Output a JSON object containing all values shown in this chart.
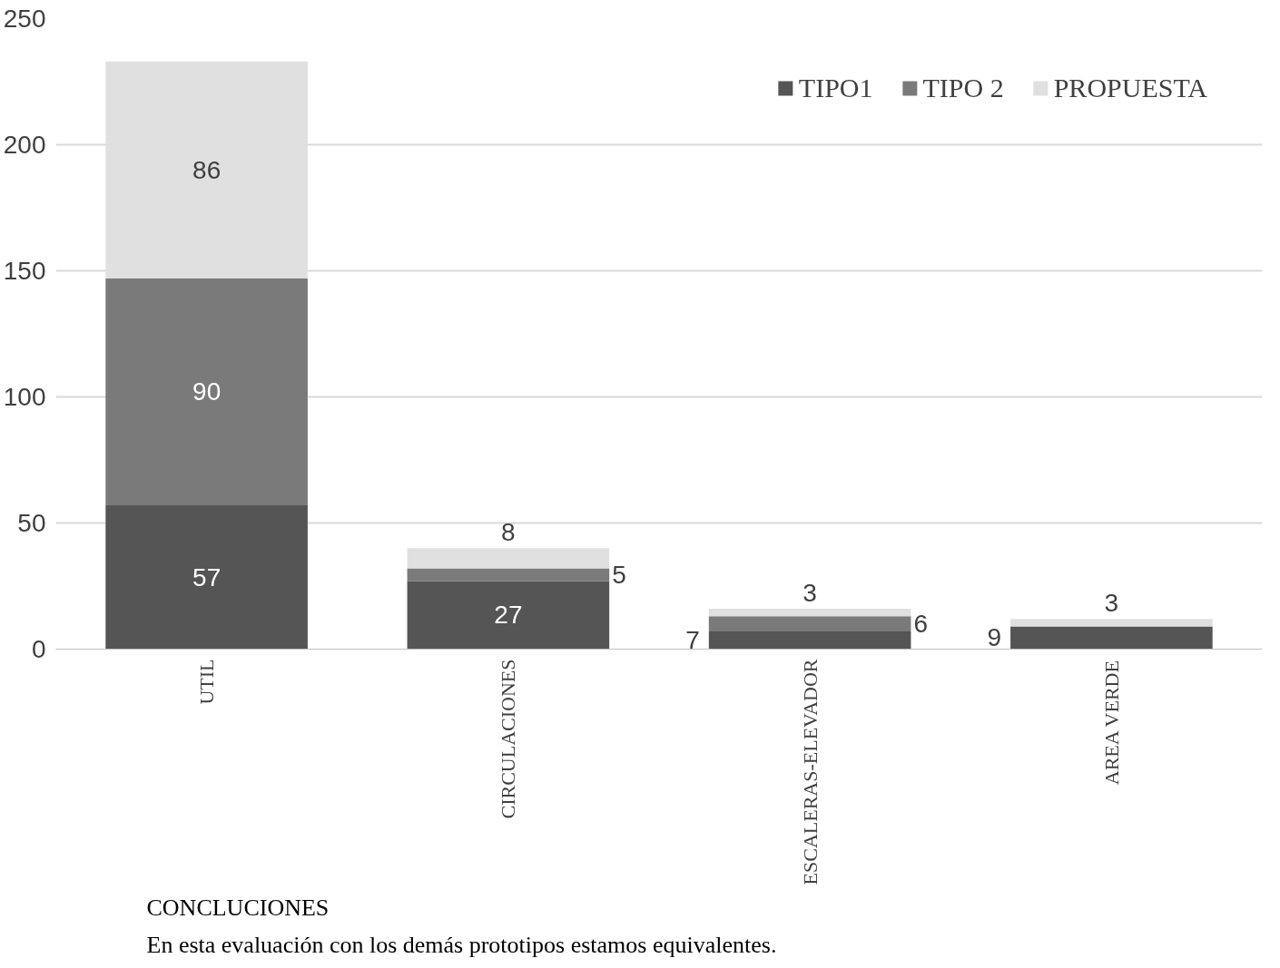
{
  "chart_data": {
    "type": "bar",
    "stacked": true,
    "categories": [
      "UTIL",
      "CIRCULACIONES",
      "ESCALERAS-ELEVADOR",
      "AREA VERDE"
    ],
    "series": [
      {
        "name": "TIPO1",
        "color": "#555555",
        "values": [
          57,
          27,
          7,
          9
        ]
      },
      {
        "name": "TIPO 2",
        "color": "#7a7a7a",
        "values": [
          90,
          5,
          6,
          null
        ]
      },
      {
        "name": "PROPUESTA",
        "color": "#e0e0e0",
        "values": [
          86,
          8,
          3,
          3
        ]
      }
    ],
    "ylim": [
      0,
      250
    ],
    "yticks": [
      0,
      50,
      100,
      150,
      200,
      250
    ],
    "grid": "y",
    "legend": "top right",
    "data_labels": true,
    "annotations": [
      "CONCLUCIONES",
      "En esta evaluación con los demás prototipos estamos equivalentes."
    ]
  }
}
